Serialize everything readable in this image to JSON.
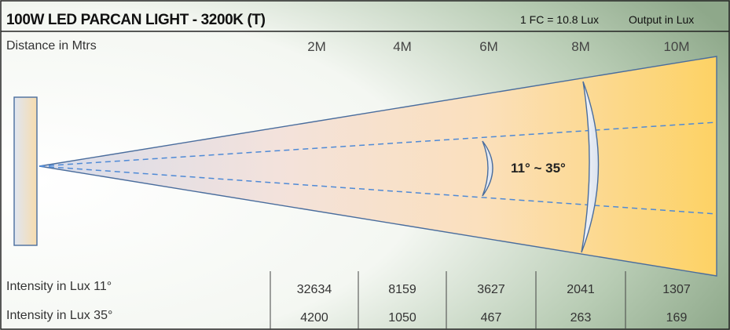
{
  "header": {
    "title": "100W LED PARCAN LIGHT - 3200K (T)",
    "conversion_note": "1 FC = 10.8 Lux",
    "output_unit": "Output in Lux"
  },
  "distance_row": {
    "label": "Distance in Mtrs",
    "values": [
      "2M",
      "4M",
      "6M",
      "8M",
      "10M"
    ]
  },
  "beam": {
    "angle_label": "11° ~ 35°"
  },
  "intensity_rows": [
    {
      "label": "Intensity in Lux 11°",
      "values": [
        "32634",
        "8159",
        "3627",
        "2041",
        "1307"
      ]
    },
    {
      "label": "Intensity in Lux 35°",
      "values": [
        "4200",
        "1050",
        "467",
        "263",
        "169"
      ]
    }
  ],
  "colors": {
    "beam_warm": "#fdd36a",
    "beam_cool": "#dde3ef",
    "fixture_outline": "#4a6d9d",
    "dash_line": "#4f8ad6",
    "border": "#222222"
  }
}
